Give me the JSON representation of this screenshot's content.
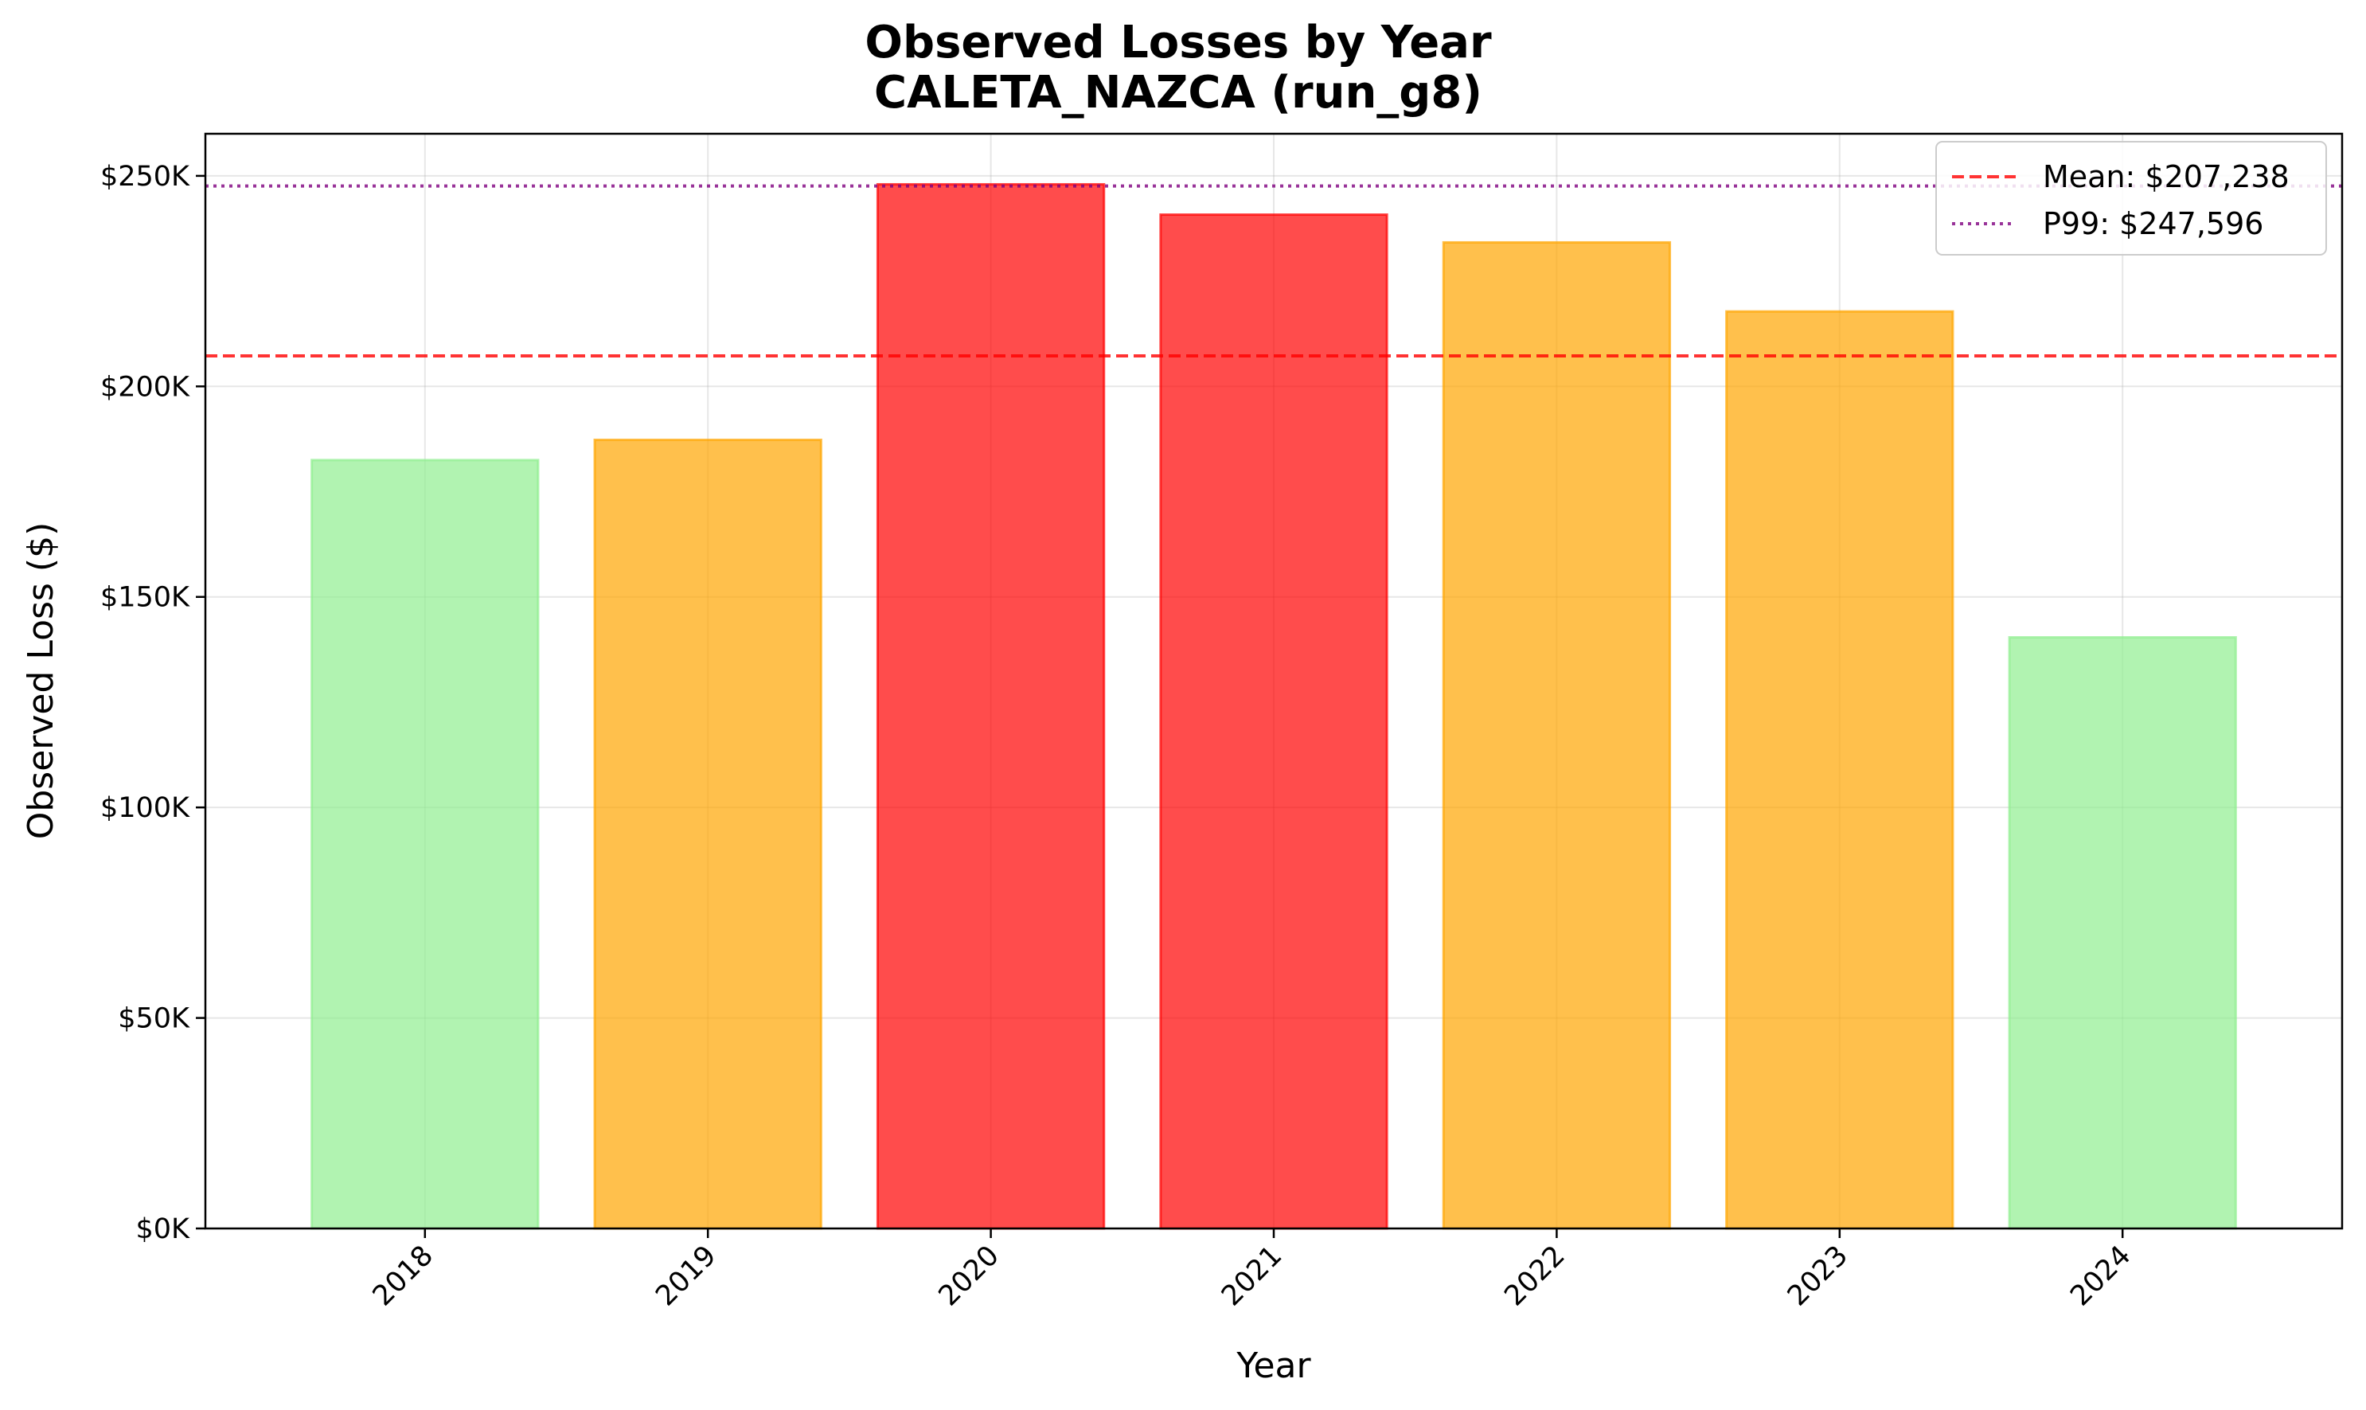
{
  "chart_data": {
    "type": "bar",
    "title_line1": "Observed Losses by Year",
    "title_line2": "CALETA_NAZCA (run_g8)",
    "xlabel": "Year",
    "ylabel": "Observed Loss ($)",
    "categories": [
      "2018",
      "2019",
      "2020",
      "2021",
      "2022",
      "2023",
      "2024"
    ],
    "values": [
      182500,
      187300,
      248000,
      240800,
      234200,
      217800,
      140400
    ],
    "bar_colors": [
      "#90ee90",
      "#ffa500",
      "#ff0000",
      "#ff0000",
      "#ffa500",
      "#ffa500",
      "#90ee90"
    ],
    "ylim": [
      0,
      260000
    ],
    "yticks": [
      0,
      50000,
      100000,
      150000,
      200000,
      250000
    ],
    "ytick_labels": [
      "$0K",
      "$50K",
      "$100K",
      "$150K",
      "$200K",
      "$250K"
    ],
    "grid": true,
    "reference_lines": [
      {
        "label": "Mean: $207,238",
        "value": 207238,
        "color": "#ff0000",
        "style": "dashed"
      },
      {
        "label": "P99: $247,596",
        "value": 247596,
        "color": "#800080",
        "style": "dotted"
      }
    ],
    "legend_position": "top-right"
  }
}
